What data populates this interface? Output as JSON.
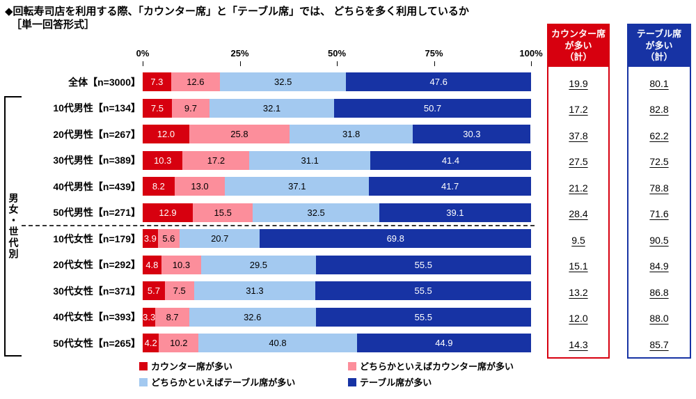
{
  "title": {
    "line1": "◆回転寿司店を利用する際、「カウンター席」と「テーブル席」では、 どちらを多く利用しているか",
    "line2": "［単一回答形式］"
  },
  "group_axis_label": "男女・世代別",
  "axis": {
    "ticks": [
      "0%",
      "25%",
      "50%",
      "75%",
      "100%"
    ]
  },
  "summary": {
    "counter_header": "カウンター席\nが多い\n（計）",
    "table_header": "テーブル席\nが多い\n（計）",
    "counter_color": "#d7000f",
    "table_color": "#1733a4"
  },
  "legend": [
    {
      "label": "カウンター席が多い",
      "color": "#d7000f"
    },
    {
      "label": "どちらかといえばカウンター席が多い",
      "color": "#fc8e9b"
    },
    {
      "label": "どちらかといえばテーブル席が多い",
      "color": "#a3c9f0"
    },
    {
      "label": "テーブル席が多い",
      "color": "#1733a4"
    }
  ],
  "chart_data": {
    "type": "bar",
    "stacked": true,
    "orientation": "horizontal",
    "title": "回転寿司店を利用する際、「カウンター席」と「テーブル席」では、どちらを多く利用しているか",
    "xlim": [
      0,
      100
    ],
    "x_ticks": [
      0,
      25,
      50,
      75,
      100
    ],
    "grid": false,
    "legend_position": "bottom",
    "series": [
      "カウンター席が多い",
      "どちらかといえばカウンター席が多い",
      "どちらかといえばテーブル席が多い",
      "テーブル席が多い"
    ],
    "colors": [
      "#d7000f",
      "#fc8e9b",
      "#a3c9f0",
      "#1733a4"
    ],
    "rows": [
      {
        "label": "全体【n=3000】",
        "values": [
          7.3,
          12.6,
          32.5,
          47.6
        ],
        "counter_total": 19.9,
        "table_total": 80.1
      },
      {
        "label": "10代男性【n=134】",
        "values": [
          7.5,
          9.7,
          32.1,
          50.7
        ],
        "counter_total": 17.2,
        "table_total": 82.8
      },
      {
        "label": "20代男性【n=267】",
        "values": [
          12.0,
          25.8,
          31.8,
          30.3
        ],
        "counter_total": 37.8,
        "table_total": 62.2
      },
      {
        "label": "30代男性【n=389】",
        "values": [
          10.3,
          17.2,
          31.1,
          41.4
        ],
        "counter_total": 27.5,
        "table_total": 72.5
      },
      {
        "label": "40代男性【n=439】",
        "values": [
          8.2,
          13.0,
          37.1,
          41.7
        ],
        "counter_total": 21.2,
        "table_total": 78.8
      },
      {
        "label": "50代男性【n=271】",
        "values": [
          12.9,
          15.5,
          32.5,
          39.1
        ],
        "counter_total": 28.4,
        "table_total": 71.6
      },
      {
        "label": "10代女性【n=179】",
        "values": [
          3.9,
          5.6,
          20.7,
          69.8
        ],
        "counter_total": 9.5,
        "table_total": 90.5
      },
      {
        "label": "20代女性【n=292】",
        "values": [
          4.8,
          10.3,
          29.5,
          55.5
        ],
        "counter_total": 15.1,
        "table_total": 84.9
      },
      {
        "label": "30代女性【n=371】",
        "values": [
          5.7,
          7.5,
          31.3,
          55.5
        ],
        "counter_total": 13.2,
        "table_total": 86.8
      },
      {
        "label": "40代女性【n=393】",
        "values": [
          3.3,
          8.7,
          32.6,
          55.5
        ],
        "counter_total": 12.0,
        "table_total": 88.0
      },
      {
        "label": "50代女性【n=265】",
        "values": [
          4.2,
          10.2,
          40.8,
          44.9
        ],
        "counter_total": 14.3,
        "table_total": 85.7
      }
    ],
    "separator_after_row": 5
  }
}
